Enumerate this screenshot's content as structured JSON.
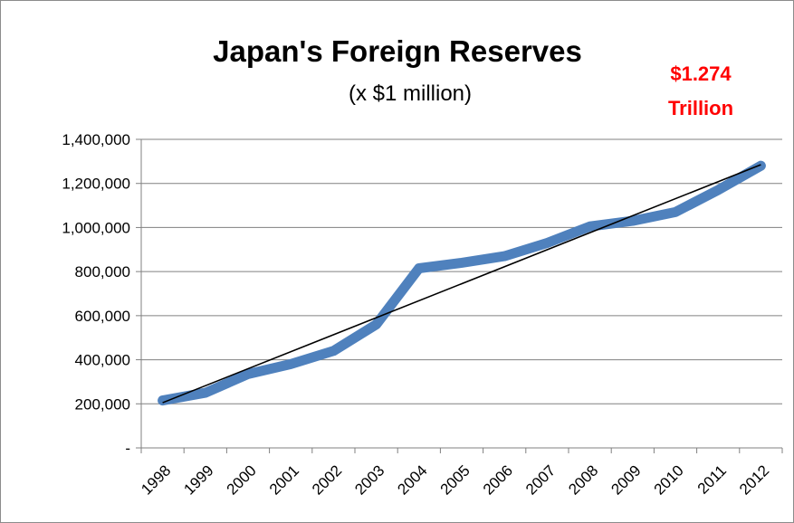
{
  "chart_data": {
    "type": "line",
    "title": "Japan's Foreign Reserves",
    "subtitle": "(x $1 million)",
    "annotation": [
      "$1.274",
      "Trillion"
    ],
    "categories": [
      "1998",
      "1999",
      "2000",
      "2001",
      "2002",
      "2003",
      "2004",
      "2005",
      "2006",
      "2007",
      "2008",
      "2009",
      "2010",
      "2011",
      "2012"
    ],
    "series": [
      {
        "values": [
          215000,
          250000,
          335000,
          380000,
          440000,
          560000,
          815000,
          840000,
          870000,
          930000,
          1005000,
          1030000,
          1070000,
          1170000,
          1280000
        ],
        "color": "#4f81bd"
      }
    ],
    "trendline": {
      "start": 205000,
      "end": 1285000,
      "color": "#000000"
    },
    "ylim": [
      0,
      1400000
    ],
    "yticks": [
      0,
      200000,
      400000,
      600000,
      800000,
      1000000,
      1200000,
      1400000
    ],
    "ytick_labels": [
      "-",
      "200,000",
      "400,000",
      "600,000",
      "800,000",
      "1,000,000",
      "1,200,000",
      "1,400,000"
    ],
    "grid": true,
    "annotation_color": "#ff0000"
  }
}
